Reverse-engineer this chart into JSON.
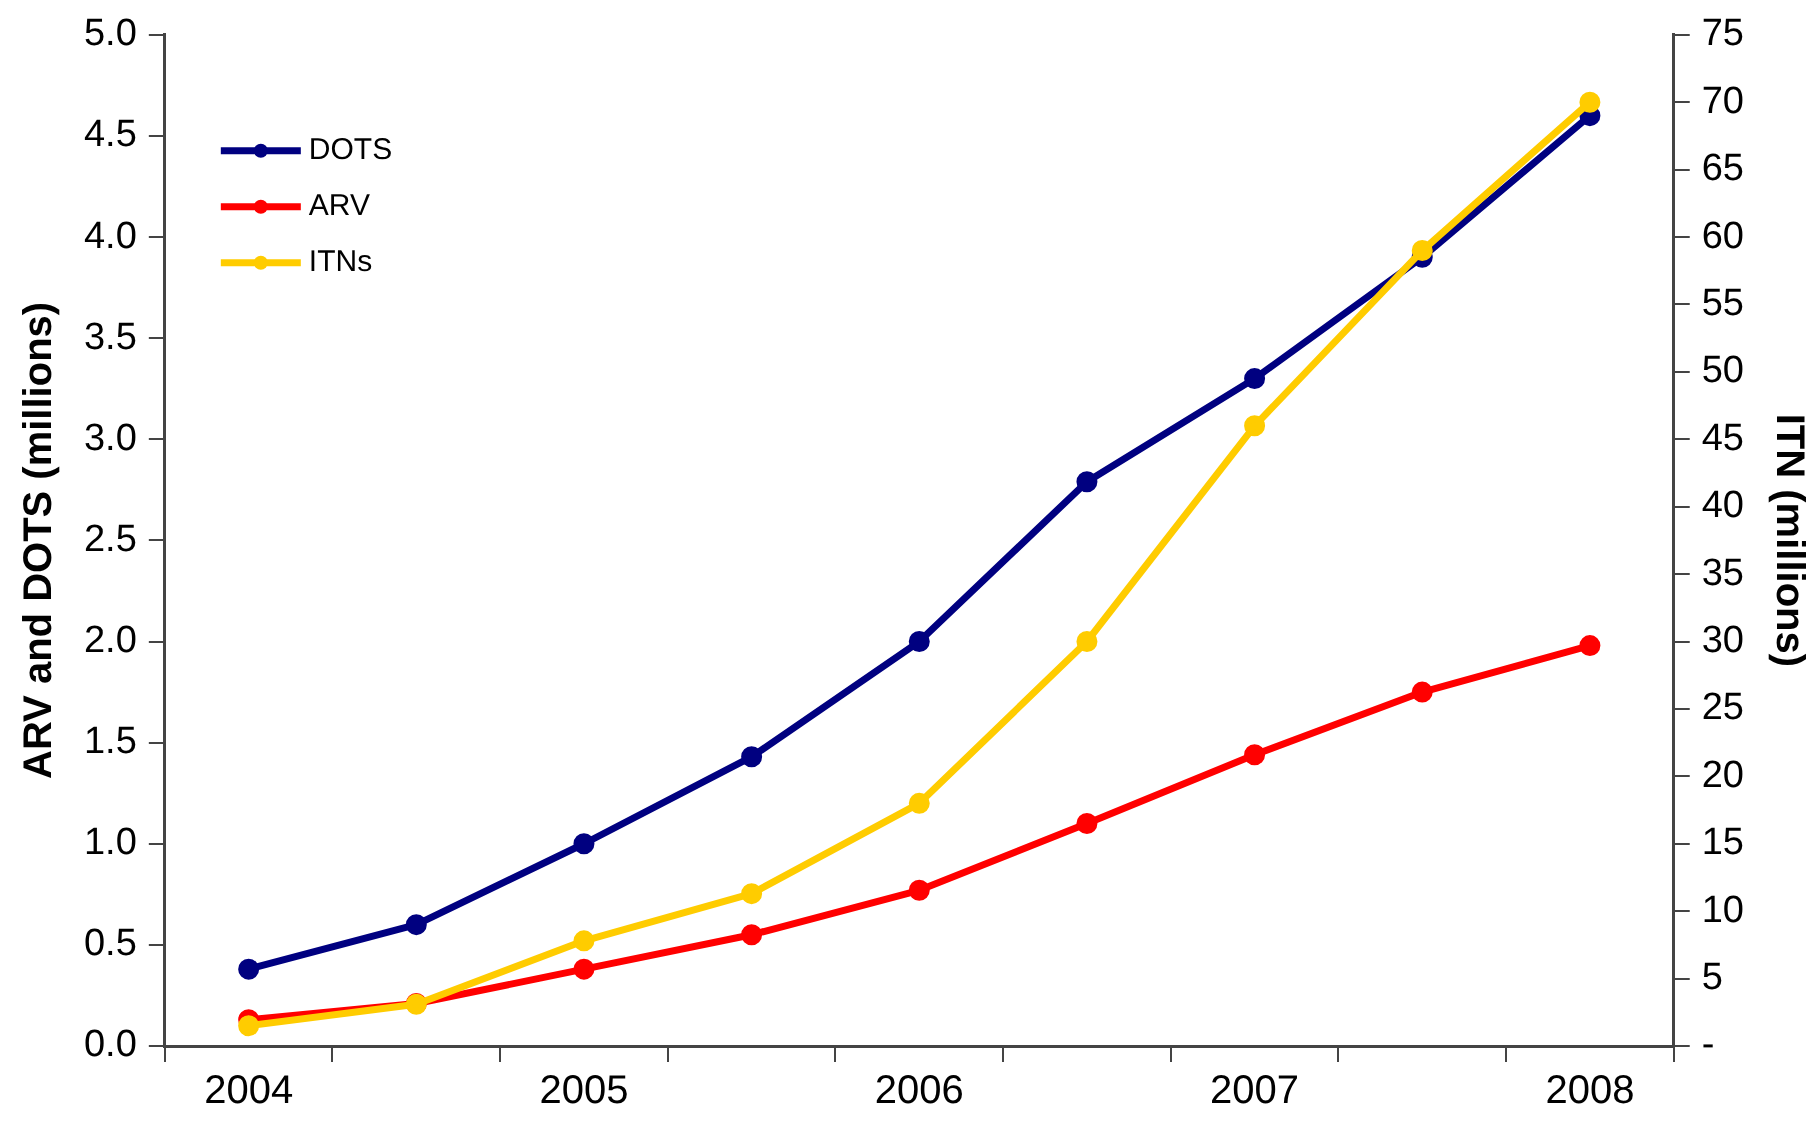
{
  "chart_data": {
    "type": "line",
    "ylabel": "ARV and DOTS (millions)",
    "y2label": "ITN (millions)",
    "categories": [
      "2004",
      null,
      "2005",
      null,
      "2006",
      null,
      "2007",
      null,
      "2008"
    ],
    "series": [
      {
        "name": "DOTS",
        "color": "#000080",
        "values": [
          0.38,
          0.6,
          1.0,
          1.43,
          2.0,
          2.79,
          3.3,
          3.9,
          4.6
        ]
      },
      {
        "name": "ARV",
        "color": "#ff0000",
        "values": [
          0.13,
          0.21,
          0.38,
          0.55,
          0.77,
          1.1,
          1.44,
          1.75,
          1.98
        ]
      },
      {
        "name": "ITNs",
        "color": "#ffcc00",
        "axis": "y2",
        "values": [
          1.5,
          3.1,
          7.8,
          11.3,
          18,
          30,
          46,
          59,
          70
        ]
      }
    ],
    "ylim": [
      0,
      5
    ],
    "yticks": [
      {
        "value": 0,
        "label": "0.0"
      },
      {
        "value": 0.5,
        "label": "0.5"
      },
      {
        "value": 1,
        "label": "1.0"
      },
      {
        "value": 1.5,
        "label": "1.5"
      },
      {
        "value": 2,
        "label": "2.0"
      },
      {
        "value": 2.5,
        "label": "2.5"
      },
      {
        "value": 3,
        "label": "3.0"
      },
      {
        "value": 3.5,
        "label": "3.5"
      },
      {
        "value": 4,
        "label": "4.0"
      },
      {
        "value": 4.5,
        "label": "4.5"
      },
      {
        "value": 5,
        "label": "5.0"
      }
    ],
    "y2lim": [
      0,
      75
    ],
    "y2ticks": [
      {
        "value": 0,
        "label": "-"
      },
      5,
      10,
      15,
      20,
      25,
      30,
      35,
      40,
      45,
      50,
      55,
      60,
      65,
      70,
      75
    ],
    "grid": false,
    "legend": "top left",
    "marker": "circle",
    "line_style": "solid"
  }
}
